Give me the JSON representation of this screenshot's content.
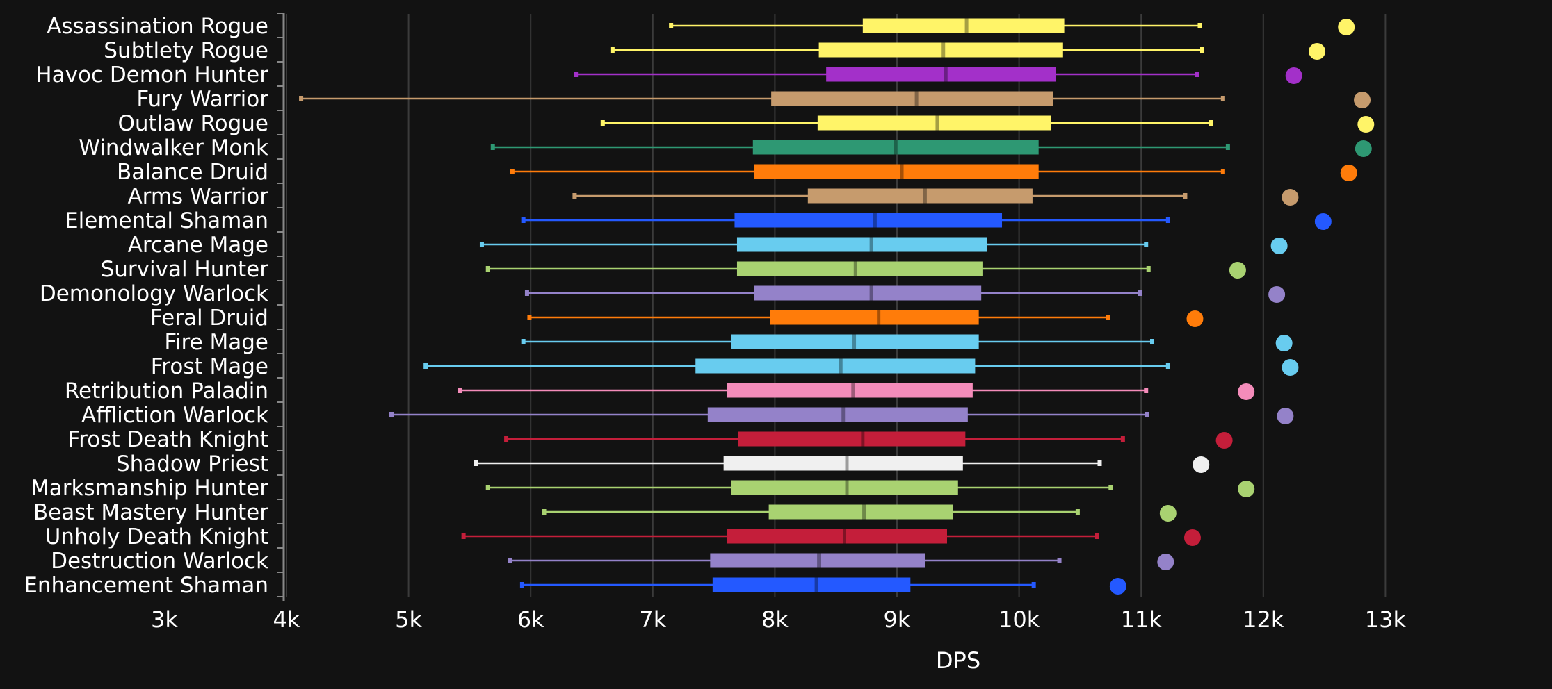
{
  "chart_data": {
    "type": "boxplot",
    "xlabel": "DPS",
    "xlim": [
      3000,
      13000
    ],
    "x_ticks": [
      3000,
      4000,
      5000,
      6000,
      7000,
      8000,
      9000,
      10000,
      11000,
      12000,
      13000
    ],
    "x_tick_labels": [
      "3k",
      "4k",
      "5k",
      "6k",
      "7k",
      "8k",
      "9k",
      "10k",
      "11k",
      "12k",
      "13k"
    ],
    "grid": true,
    "series": [
      {
        "name": "Assassination Rogue",
        "color": "#fff468",
        "min": 7150,
        "q1": 8720,
        "median": 9570,
        "q3": 10370,
        "max": 11480,
        "top": 12680
      },
      {
        "name": "Subtlety Rogue",
        "color": "#fff468",
        "min": 6670,
        "q1": 8360,
        "median": 9380,
        "q3": 10360,
        "max": 11500,
        "top": 12440
      },
      {
        "name": "Havoc Demon Hunter",
        "color": "#a330c9",
        "min": 6370,
        "q1": 8420,
        "median": 9400,
        "q3": 10300,
        "max": 11460,
        "top": 12250
      },
      {
        "name": "Fury Warrior",
        "color": "#c69b6d",
        "min": 4120,
        "q1": 7970,
        "median": 9160,
        "q3": 10280,
        "max": 11670,
        "top": 12810
      },
      {
        "name": "Outlaw Rogue",
        "color": "#fff468",
        "min": 6590,
        "q1": 8350,
        "median": 9330,
        "q3": 10260,
        "max": 11570,
        "top": 12840
      },
      {
        "name": "Windwalker Monk",
        "color": "#2e9873",
        "min": 5690,
        "q1": 7820,
        "median": 8990,
        "q3": 10160,
        "max": 11710,
        "top": 12820
      },
      {
        "name": "Balance Druid",
        "color": "#ff7c0a",
        "min": 5850,
        "q1": 7830,
        "median": 9040,
        "q3": 10160,
        "max": 11670,
        "top": 12700
      },
      {
        "name": "Arms Warrior",
        "color": "#c69b6d",
        "min": 6360,
        "q1": 8270,
        "median": 9230,
        "q3": 10110,
        "max": 11360,
        "top": 12220
      },
      {
        "name": "Elemental Shaman",
        "color": "#2459ff",
        "min": 5940,
        "q1": 7670,
        "median": 8820,
        "q3": 9860,
        "max": 11220,
        "top": 12490
      },
      {
        "name": "Arcane Mage",
        "color": "#68ccef",
        "min": 5600,
        "q1": 7690,
        "median": 8790,
        "q3": 9740,
        "max": 11040,
        "top": 12130
      },
      {
        "name": "Survival Hunter",
        "color": "#a9d271",
        "min": 5650,
        "q1": 7690,
        "median": 8660,
        "q3": 9700,
        "max": 11060,
        "top": 11790
      },
      {
        "name": "Demonology Warlock",
        "color": "#9482c9",
        "min": 5970,
        "q1": 7830,
        "median": 8790,
        "q3": 9690,
        "max": 10990,
        "top": 12110
      },
      {
        "name": "Feral Druid",
        "color": "#ff7c0a",
        "min": 5990,
        "q1": 7960,
        "median": 8850,
        "q3": 9670,
        "max": 10730,
        "top": 11440
      },
      {
        "name": "Fire Mage",
        "color": "#68ccef",
        "min": 5940,
        "q1": 7640,
        "median": 8650,
        "q3": 9670,
        "max": 11090,
        "top": 12170
      },
      {
        "name": "Frost Mage",
        "color": "#68ccef",
        "min": 5140,
        "q1": 7350,
        "median": 8540,
        "q3": 9640,
        "max": 11220,
        "top": 12220
      },
      {
        "name": "Retribution Paladin",
        "color": "#f48cba",
        "min": 5420,
        "q1": 7610,
        "median": 8640,
        "q3": 9620,
        "max": 11040,
        "top": 11860
      },
      {
        "name": "Affliction Warlock",
        "color": "#9482c9",
        "min": 4860,
        "q1": 7450,
        "median": 8560,
        "q3": 9580,
        "max": 11050,
        "top": 12180
      },
      {
        "name": "Frost Death Knight",
        "color": "#c41e3a",
        "min": 5800,
        "q1": 7700,
        "median": 8720,
        "q3": 9560,
        "max": 10850,
        "top": 11680
      },
      {
        "name": "Shadow Priest",
        "color": "#f0f0f0",
        "min": 5550,
        "q1": 7580,
        "median": 8590,
        "q3": 9540,
        "max": 10660,
        "top": 11490
      },
      {
        "name": "Marksmanship Hunter",
        "color": "#a9d271",
        "min": 5650,
        "q1": 7640,
        "median": 8590,
        "q3": 9500,
        "max": 10750,
        "top": 11860
      },
      {
        "name": "Beast Mastery Hunter",
        "color": "#a9d271",
        "min": 6110,
        "q1": 7950,
        "median": 8730,
        "q3": 9460,
        "max": 10480,
        "top": 11220
      },
      {
        "name": "Unholy Death Knight",
        "color": "#c41e3a",
        "min": 5450,
        "q1": 7610,
        "median": 8570,
        "q3": 9410,
        "max": 10640,
        "top": 11420
      },
      {
        "name": "Destruction Warlock",
        "color": "#9482c9",
        "min": 5830,
        "q1": 7470,
        "median": 8360,
        "q3": 9230,
        "max": 10330,
        "top": 11200
      },
      {
        "name": "Enhancement Shaman",
        "color": "#2459ff",
        "min": 5930,
        "q1": 7490,
        "median": 8340,
        "q3": 9110,
        "max": 10120,
        "top": 10810
      }
    ]
  }
}
